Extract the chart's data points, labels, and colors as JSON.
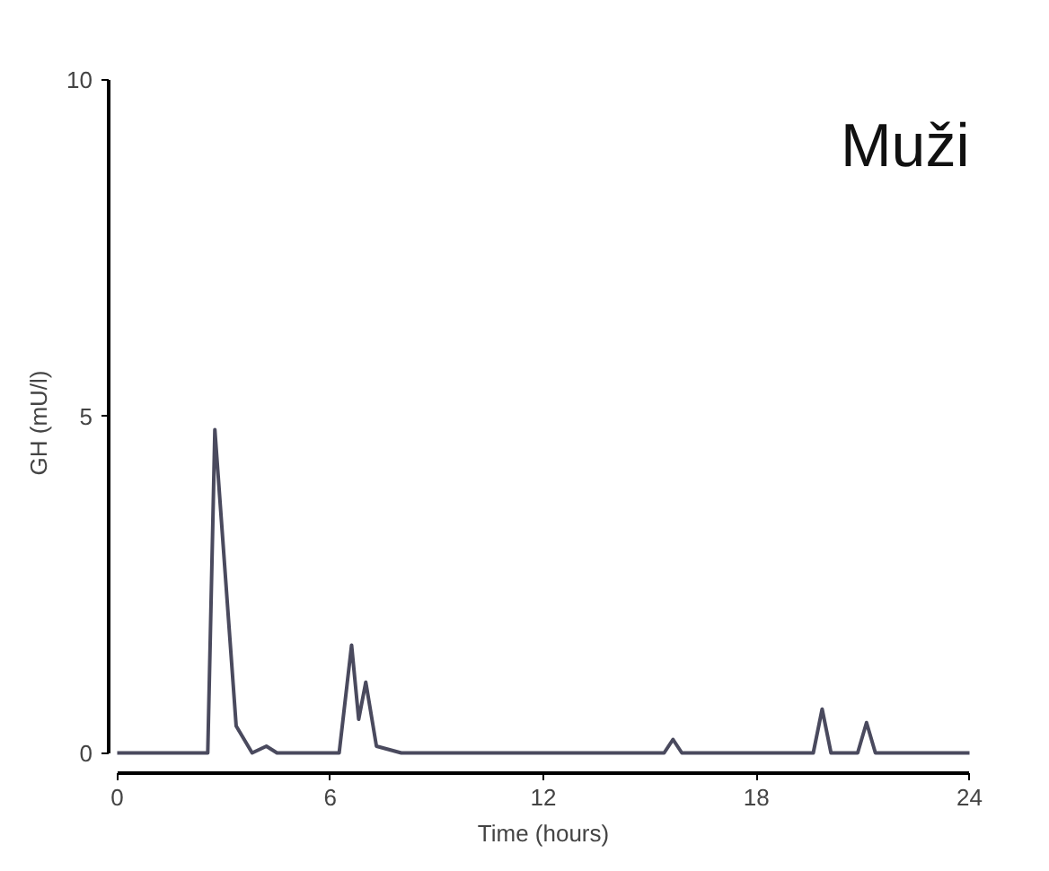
{
  "chart_data": {
    "type": "line",
    "xlabel": "Time (hours)",
    "ylabel": "GH (mU/l)",
    "annotations": [
      "Muži"
    ],
    "x": [
      0,
      2.55,
      2.75,
      3.35,
      3.8,
      4.2,
      4.5,
      6.25,
      6.6,
      6.8,
      7.0,
      7.3,
      8.0,
      15.4,
      15.65,
      15.9,
      19.6,
      19.85,
      20.1,
      20.85,
      21.1,
      21.35,
      24
    ],
    "series": [
      {
        "color": "#4a4a5e",
        "values": [
          0,
          0,
          4.8,
          0.4,
          0,
          0.1,
          0,
          0,
          1.6,
          0.5,
          1.05,
          0.1,
          0,
          0,
          0.2,
          0,
          0,
          0.65,
          0,
          0,
          0.45,
          0,
          0
        ]
      }
    ],
    "xlim": [
      0,
      24
    ],
    "ylim": [
      0,
      10
    ],
    "xticks": [
      0,
      6,
      12,
      18,
      24
    ],
    "yticks": [
      0,
      5,
      10
    ],
    "marker": "none",
    "line_style": "solid"
  }
}
